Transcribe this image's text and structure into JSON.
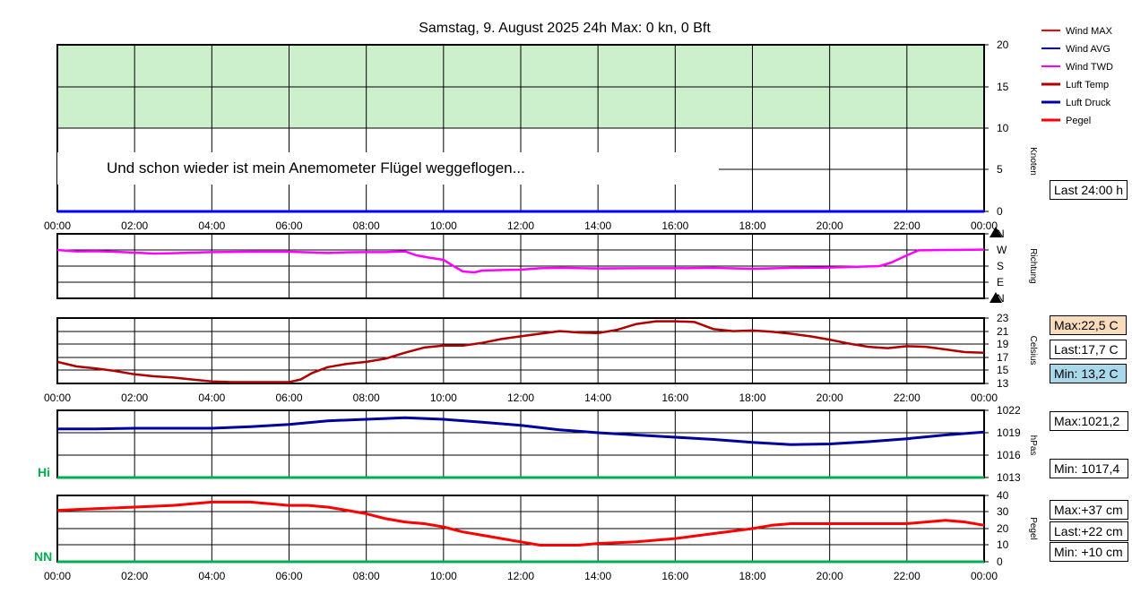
{
  "title": "Samstag, 9. August 2025 24h Max: 0 kn, 0 Bft",
  "annotation": "Und schon wieder ist mein Anemometer Flügel weggeflogen...",
  "legend": [
    {
      "label": "Wind MAX",
      "color": "#ff0000"
    },
    {
      "label": "Wind AVG",
      "color": "#0000ff"
    },
    {
      "label": "Wind TWD",
      "color": "#ff00ff"
    },
    {
      "label": "Luft Temp",
      "color": "#b00000"
    },
    {
      "label": "Luft Druck",
      "color": "#0000a0"
    },
    {
      "label": "Pegel",
      "color": "#ff0000"
    }
  ],
  "boxes": {
    "wind_last": "Last 24:00 h",
    "temp_max": "Max:22,5 C",
    "temp_last": "Last:17,7 C",
    "temp_min": "Min: 13,2 C",
    "press_max": "Max:1021,2",
    "press_min": "Min: 1017,4",
    "pegel_max": "Max:+37 cm",
    "pegel_last": "Last:+22 cm",
    "pegel_min": "Min: +10 cm"
  },
  "colors": {
    "temp_max_bg": "#f9dcbc",
    "temp_min_bg": "#a8d8ea",
    "wind_zone": "#ccf0cc",
    "hi_nn": "#00b050"
  },
  "chart_data": [
    {
      "type": "line",
      "name": "wind",
      "ylabel": "Knoten",
      "ylim": [
        0,
        20
      ],
      "yticks": [
        "0",
        "5",
        "10",
        "15",
        "20"
      ],
      "xticks": [
        "00:00",
        "02:00",
        "04:00",
        "06:00",
        "08:00",
        "10:00",
        "12:00",
        "14:00",
        "16:00",
        "18:00",
        "20:00",
        "22:00",
        "00:00"
      ],
      "shaded_range": [
        10,
        20
      ],
      "series": [
        {
          "name": "Wind MAX",
          "x": [
            0,
            24
          ],
          "y": [
            0,
            0
          ]
        },
        {
          "name": "Wind AVG",
          "x": [
            0,
            24
          ],
          "y": [
            0,
            0
          ]
        }
      ]
    },
    {
      "type": "line",
      "name": "direction",
      "ylabel": "Richtung",
      "ylim": [
        0,
        360
      ],
      "yticks": [
        "N",
        "E",
        "S",
        "W",
        "N"
      ],
      "series": [
        {
          "name": "Wind TWD",
          "x": [
            0,
            0.5,
            1,
            1.5,
            2,
            2.5,
            3,
            4,
            5,
            6,
            6.5,
            7,
            7.5,
            8,
            8.5,
            9,
            9.3,
            9.6,
            10,
            10.3,
            10.5,
            10.8,
            11,
            11.5,
            12,
            12.5,
            13,
            14,
            15,
            16,
            17,
            18,
            19,
            20,
            20.5,
            21,
            21.3,
            21.6,
            22,
            22.3,
            23,
            24
          ],
          "y": [
            270,
            262,
            263,
            260,
            255,
            250,
            252,
            258,
            260,
            260,
            257,
            253,
            257,
            258,
            258,
            262,
            240,
            228,
            215,
            175,
            150,
            145,
            155,
            158,
            160,
            168,
            170,
            167,
            168,
            168,
            170,
            165,
            170,
            172,
            175,
            178,
            180,
            200,
            240,
            268,
            270,
            272
          ]
        }
      ]
    },
    {
      "type": "line",
      "name": "temperature",
      "ylabel": "Celsius",
      "ylim": [
        13,
        23
      ],
      "yticks": [
        "13",
        "15",
        "17",
        "19",
        "21",
        "23"
      ],
      "series": [
        {
          "name": "Luft Temp",
          "x": [
            0,
            0.5,
            1,
            1.5,
            2,
            2.5,
            3,
            3.5,
            4,
            4.5,
            5,
            5.5,
            6,
            6.3,
            6.6,
            7,
            7.5,
            8,
            8.5,
            9,
            9.5,
            10,
            10.5,
            11,
            11.5,
            12,
            12.5,
            13,
            13.5,
            14,
            14.5,
            15,
            15.5,
            16,
            16.5,
            17,
            17.5,
            18,
            18.5,
            19,
            19.5,
            20,
            20.5,
            21,
            21.5,
            22,
            22.5,
            23,
            23.5,
            24
          ],
          "y": [
            16.3,
            15.6,
            15.3,
            14.9,
            14.4,
            14.1,
            13.9,
            13.6,
            13.3,
            13.2,
            13.2,
            13.2,
            13.2,
            13.6,
            14.6,
            15.5,
            16.0,
            16.3,
            16.8,
            17.7,
            18.5,
            18.8,
            18.8,
            19.2,
            19.8,
            20.2,
            20.6,
            21.0,
            20.8,
            20.7,
            21.2,
            22.1,
            22.5,
            22.5,
            22.4,
            21.3,
            21.0,
            21.1,
            20.9,
            20.6,
            20.2,
            19.7,
            19.1,
            18.6,
            18.4,
            18.7,
            18.6,
            18.2,
            17.8,
            17.7
          ]
        }
      ]
    },
    {
      "type": "line",
      "name": "pressure",
      "ylabel": "hPas",
      "ylim": [
        1013,
        1022
      ],
      "yticks": [
        "1013",
        "1016",
        "1019",
        "1022"
      ],
      "left_label": "Hi",
      "series": [
        {
          "name": "Luft Druck",
          "x": [
            0,
            1,
            2,
            3,
            4,
            5,
            6,
            7,
            8,
            9,
            10,
            11,
            12,
            13,
            14,
            15,
            16,
            17,
            18,
            19,
            20,
            21,
            22,
            23,
            24
          ],
          "y": [
            1019.5,
            1019.5,
            1019.6,
            1019.6,
            1019.6,
            1019.8,
            1020.1,
            1020.6,
            1020.8,
            1021.0,
            1020.8,
            1020.4,
            1020.0,
            1019.4,
            1019.0,
            1018.7,
            1018.4,
            1018.1,
            1017.7,
            1017.4,
            1017.5,
            1017.8,
            1018.2,
            1018.7,
            1019.1
          ]
        }
      ]
    },
    {
      "type": "line",
      "name": "pegel",
      "ylabel": "Pegel",
      "ylim": [
        0,
        40
      ],
      "yticks": [
        "0",
        "10",
        "20",
        "30",
        "40"
      ],
      "left_label": "NN",
      "series": [
        {
          "name": "Pegel",
          "x": [
            0,
            1,
            2,
            3,
            4,
            5,
            6,
            6.5,
            7,
            7.5,
            8,
            8.5,
            9,
            9.5,
            10,
            10.5,
            11,
            11.5,
            12,
            12.5,
            13,
            13.5,
            14,
            15,
            16,
            17,
            18,
            18.5,
            19,
            20,
            21,
            22,
            22.5,
            23,
            23.5,
            24
          ],
          "y": [
            31,
            32,
            33,
            34,
            36,
            36,
            34,
            34,
            33,
            31,
            29,
            26,
            24,
            23,
            21,
            18,
            16,
            14,
            12,
            10,
            10,
            10,
            11,
            12,
            14,
            17,
            20,
            22,
            23,
            23,
            23,
            23,
            24,
            25,
            24,
            22
          ]
        }
      ]
    }
  ]
}
